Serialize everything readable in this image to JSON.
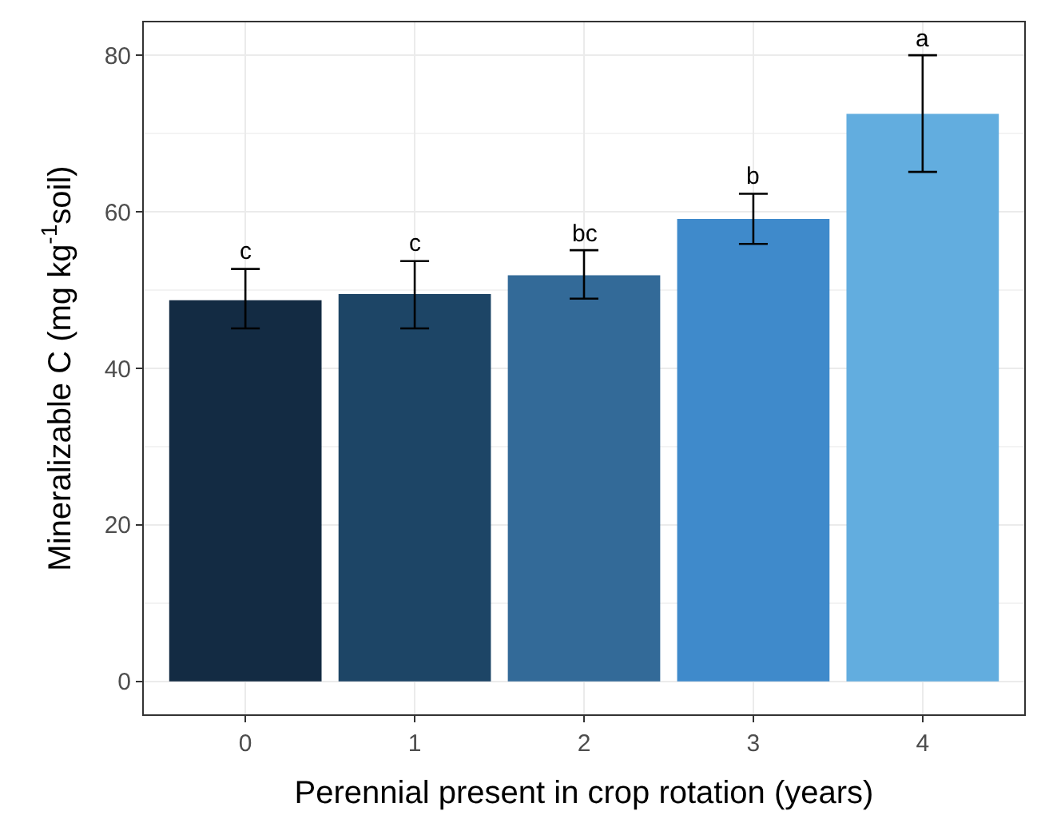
{
  "chart_data": {
    "type": "bar",
    "xlabel": "Perennial present in crop rotation (years)",
    "ylabel": "Mineralizable C (mg kg$^{-1}$soil)",
    "categories": [
      "0",
      "1",
      "2",
      "3",
      "4"
    ],
    "values": [
      48.7,
      49.5,
      51.9,
      59.1,
      72.5
    ],
    "colors": [
      "#132b43",
      "#1d4566",
      "#336a98",
      "#3f8acb",
      "#62addf"
    ],
    "errors": [
      [
        45.1,
        52.7
      ],
      [
        45.1,
        53.7
      ],
      [
        48.9,
        55.1
      ],
      [
        55.9,
        62.3
      ],
      [
        65.1,
        80.0
      ]
    ],
    "ylim": [
      -4.2,
      84.2
    ],
    "yticks": [
      0,
      20,
      40,
      60,
      80
    ],
    "grid": true,
    "annotations": [
      {
        "text": "c",
        "x": "0",
        "y": 52.7
      },
      {
        "text": "c",
        "x": "1",
        "y": 53.7
      },
      {
        "text": "bc",
        "x": "2",
        "y": 55.1
      },
      {
        "text": "b",
        "x": "3",
        "y": 62.3
      },
      {
        "text": "a",
        "x": "4",
        "y": 80.0
      }
    ]
  }
}
